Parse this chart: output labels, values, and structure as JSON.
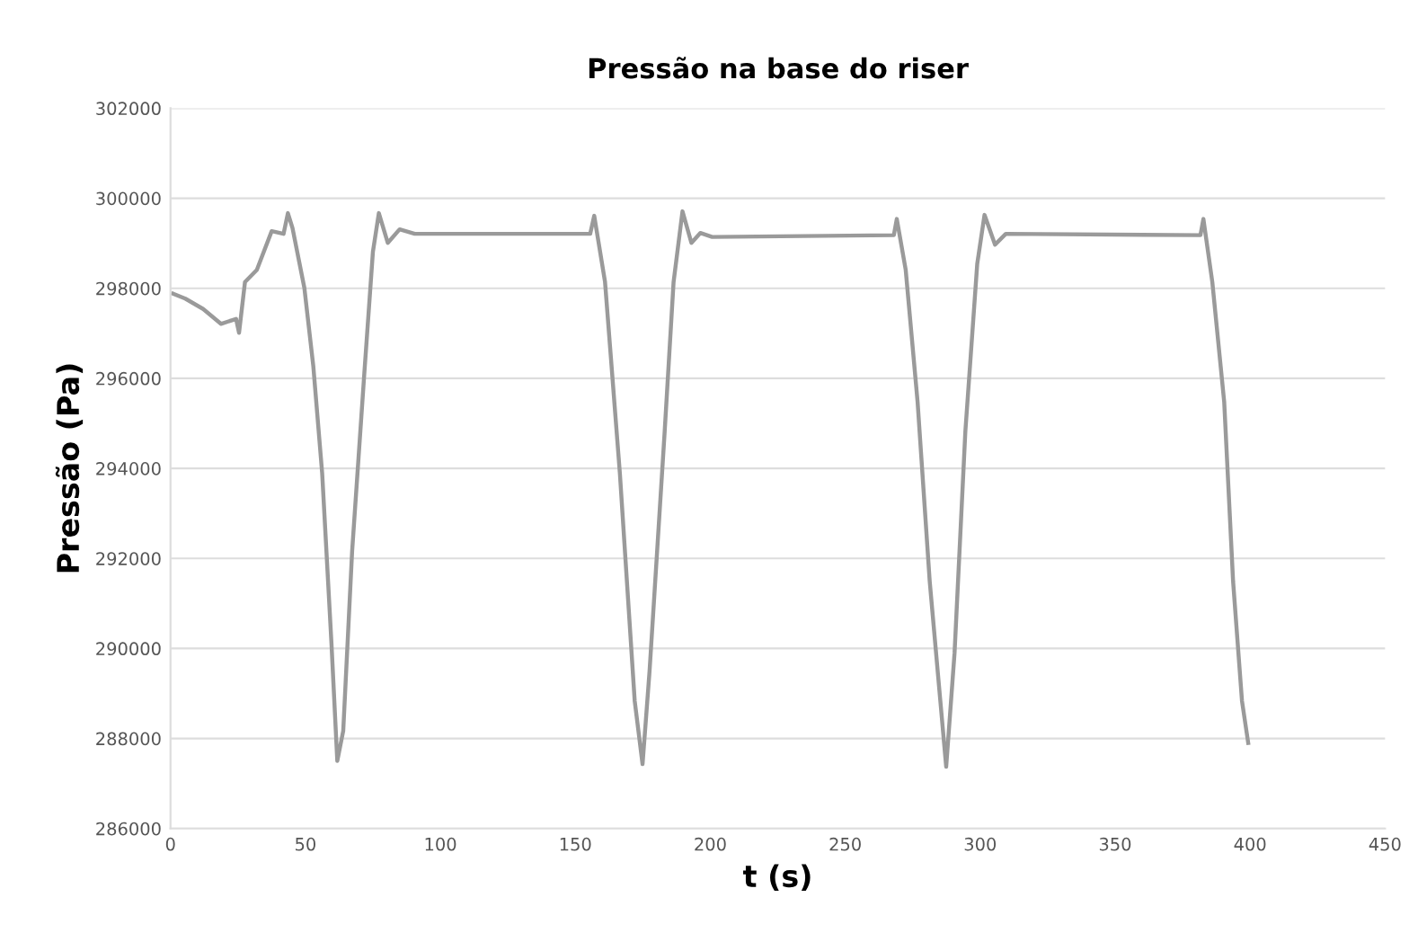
{
  "chart_data": {
    "type": "line",
    "title": "Pressão na base do riser",
    "xlabel": "t (s)",
    "ylabel": "Pressão (Pa)",
    "xlim": [
      0,
      450
    ],
    "xticks": [
      0,
      50,
      100,
      150,
      200,
      250,
      300,
      350,
      400,
      450
    ],
    "ylim": [
      286000,
      302000
    ],
    "yticks": [
      286000,
      288000,
      290000,
      292000,
      294000,
      296000,
      298000,
      300000,
      302000
    ],
    "grid": "y",
    "marker": "none",
    "line_style": "solid",
    "series": [
      {
        "color": "#9a9a9a",
        "x": [
          1,
          5.5,
          12.1,
          18.7,
          24.3,
          25.4,
          27.6,
          32,
          37.5,
          41.9,
          43.5,
          45.2,
          49.6,
          52.9,
          56.2,
          59.6,
          61.8,
          64,
          67.3,
          71.7,
          75,
          77.2,
          80.5,
          84.9,
          90.5,
          155.5,
          157,
          161,
          166.5,
          172,
          174.9,
          177.5,
          183.1,
          186.4,
          189.7,
          193,
          196.3,
          200.7,
          268,
          269.1,
          272.4,
          276.8,
          281.3,
          287.4,
          290.5,
          294.5,
          298.9,
          301.6,
          305.5,
          309.5,
          381.6,
          382.7,
          386,
          390.4,
          393.7,
          397,
          399.3
        ],
        "values": [
          297880,
          297770,
          297540,
          297210,
          297320,
          297010,
          298140,
          298410,
          299270,
          299210,
          299670,
          299340,
          298010,
          296280,
          293890,
          290160,
          287500,
          288170,
          292160,
          296010,
          298810,
          299670,
          299010,
          299310,
          299210,
          299210,
          299610,
          298140,
          293890,
          288830,
          287430,
          289500,
          294820,
          298140,
          299710,
          299010,
          299230,
          299140,
          299180,
          299540,
          298410,
          295480,
          291490,
          287370,
          289900,
          294820,
          298540,
          299630,
          298970,
          299210,
          299180,
          299540,
          298140,
          295480,
          291490,
          288830,
          287900
        ]
      }
    ]
  }
}
